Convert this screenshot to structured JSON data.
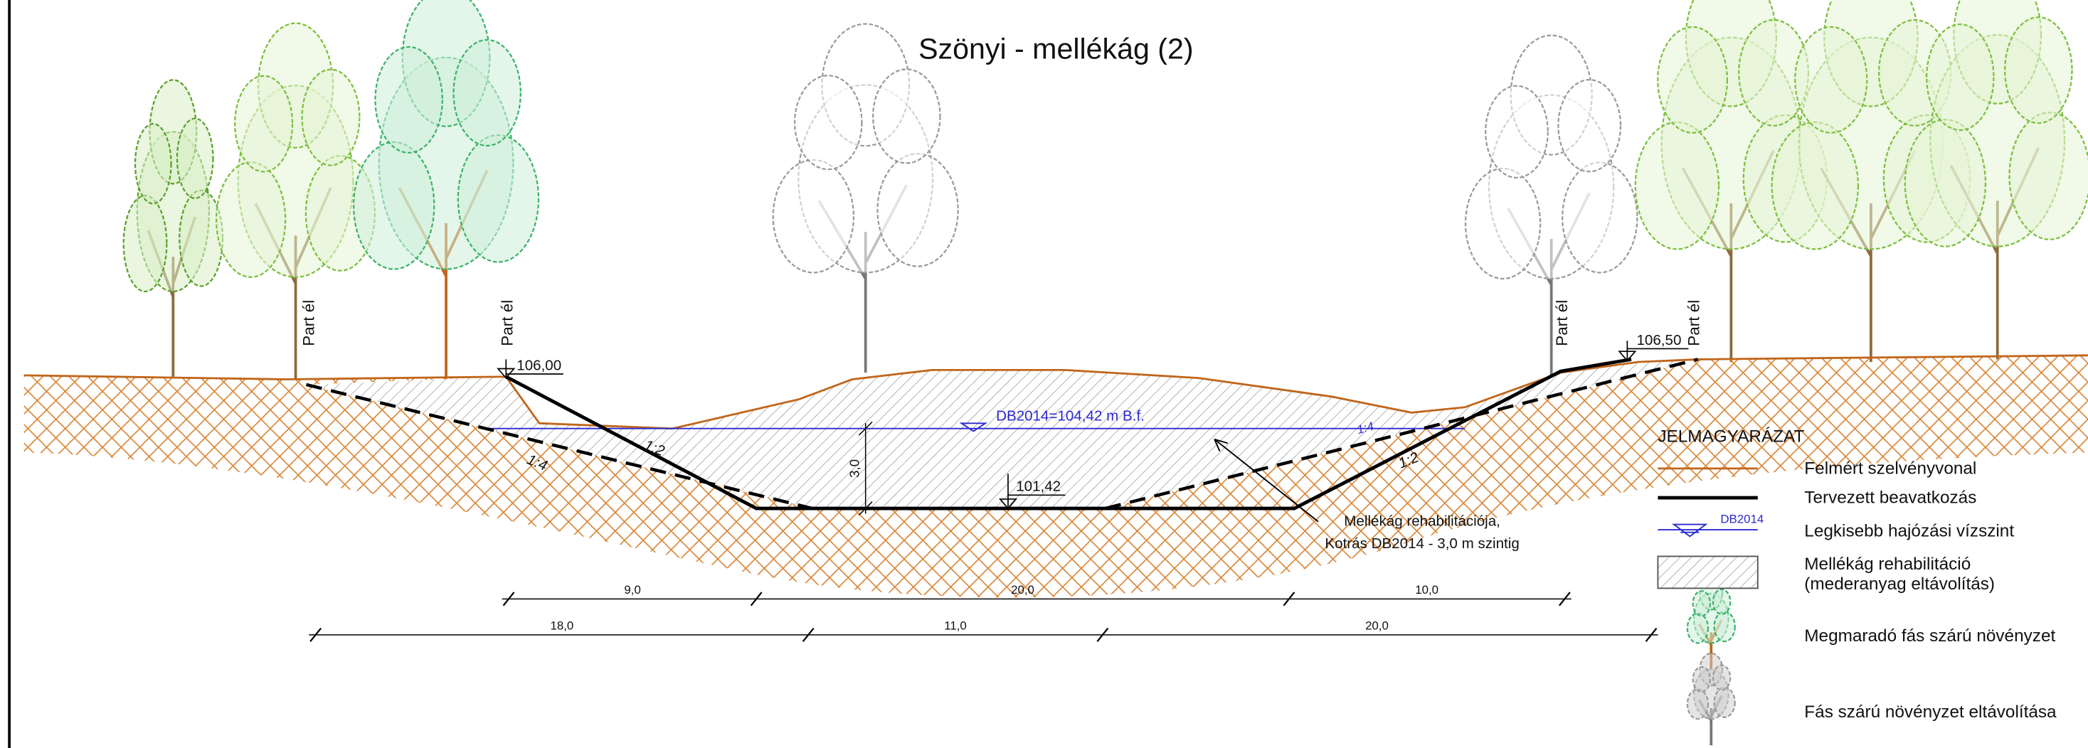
{
  "title": "Szönyi - mellékág (2)",
  "bank_labels": [
    "Part él",
    "Part él",
    "Part él",
    "Part él"
  ],
  "elevations": {
    "left_bank": "106,00",
    "right_bank": "106,50",
    "bed": "101,42",
    "water_level": "DB2014=104,42 m B.f."
  },
  "depth": "3,0",
  "slopes": [
    "1:4",
    "1:2",
    "1:4",
    "1:2"
  ],
  "annotation": [
    "Mellékág rehabilitációja,",
    "Kotrás DB2014 - 3,0 m szintig"
  ],
  "dimensions": {
    "upper": [
      "9,0",
      "20,0",
      "10,0"
    ],
    "lower": [
      "18,0",
      "11,0",
      "20,0"
    ]
  },
  "legend": {
    "title": "JELMAGYARÁZAT",
    "items": [
      {
        "label": "Felmért szelvényvonal"
      },
      {
        "label": "Tervezett beavatkozás"
      },
      {
        "label": "Legkisebb hajózási vízszint",
        "symbol_label": "DB2014"
      },
      {
        "lines": [
          "Mellékág rehabilitáció",
          "(mederanyag eltávolítás)"
        ]
      },
      {
        "label": "Megmaradó fás szárú növényzet"
      },
      {
        "label": "Fás szárú növényzet eltávolítása"
      }
    ]
  }
}
